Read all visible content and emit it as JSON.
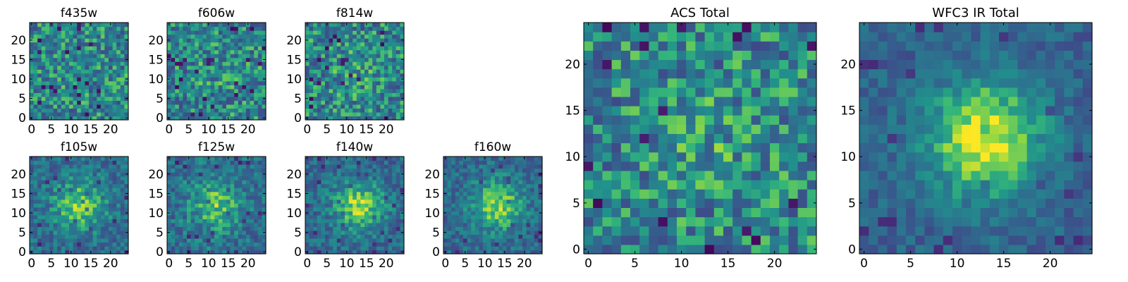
{
  "figure": {
    "description_hidden": null
  },
  "chart_data": [
    {
      "type": "heatmap",
      "title": "f435w",
      "grid_size": 25,
      "xlim": [
        -0.5,
        24.5
      ],
      "ylim": [
        -0.5,
        24.5
      ],
      "xticks": [
        0,
        5,
        10,
        15,
        20
      ],
      "yticks": [
        0,
        5,
        10,
        15,
        20
      ],
      "colormap": "viridis",
      "vmin": 0,
      "vmax": 1,
      "pattern": "noise",
      "seed": 11,
      "center_strength": 0.0
    },
    {
      "type": "heatmap",
      "title": "f606w",
      "grid_size": 25,
      "xlim": [
        -0.5,
        24.5
      ],
      "ylim": [
        -0.5,
        24.5
      ],
      "xticks": [
        0,
        5,
        10,
        15,
        20
      ],
      "yticks": [
        0,
        5,
        10,
        15,
        20
      ],
      "colormap": "viridis",
      "vmin": 0,
      "vmax": 1,
      "pattern": "noise",
      "seed": 23,
      "center_strength": 0.05
    },
    {
      "type": "heatmap",
      "title": "f814w",
      "grid_size": 25,
      "xlim": [
        -0.5,
        24.5
      ],
      "ylim": [
        -0.5,
        24.5
      ],
      "xticks": [
        0,
        5,
        10,
        15,
        20
      ],
      "yticks": [
        0,
        5,
        10,
        15,
        20
      ],
      "colormap": "viridis",
      "vmin": 0,
      "vmax": 1,
      "pattern": "noise",
      "seed": 37,
      "center_strength": 0.08
    },
    {
      "type": "heatmap",
      "title": "f105w",
      "grid_size": 25,
      "xlim": [
        -0.5,
        24.5
      ],
      "ylim": [
        -0.5,
        24.5
      ],
      "xticks": [
        0,
        5,
        10,
        15,
        20
      ],
      "yticks": [
        0,
        5,
        10,
        15,
        20
      ],
      "colormap": "viridis",
      "vmin": 0,
      "vmax": 1,
      "pattern": "source",
      "seed": 41,
      "center_strength": 0.35,
      "center": [
        12,
        12
      ]
    },
    {
      "type": "heatmap",
      "title": "f125w",
      "grid_size": 25,
      "xlim": [
        -0.5,
        24.5
      ],
      "ylim": [
        -0.5,
        24.5
      ],
      "xticks": [
        0,
        5,
        10,
        15,
        20
      ],
      "yticks": [
        0,
        5,
        10,
        15,
        20
      ],
      "colormap": "viridis",
      "vmin": 0,
      "vmax": 1,
      "pattern": "source",
      "seed": 53,
      "center_strength": 0.3,
      "center": [
        12,
        12
      ]
    },
    {
      "type": "heatmap",
      "title": "f140w",
      "grid_size": 25,
      "xlim": [
        -0.5,
        24.5
      ],
      "ylim": [
        -0.5,
        24.5
      ],
      "xticks": [
        0,
        5,
        10,
        15,
        20
      ],
      "yticks": [
        0,
        5,
        10,
        15,
        20
      ],
      "colormap": "viridis",
      "vmin": 0,
      "vmax": 1,
      "pattern": "source",
      "seed": 67,
      "center_strength": 0.4,
      "center": [
        13,
        12
      ]
    },
    {
      "type": "heatmap",
      "title": "f160w",
      "grid_size": 25,
      "xlim": [
        -0.5,
        24.5
      ],
      "ylim": [
        -0.5,
        24.5
      ],
      "xticks": [
        0,
        5,
        10,
        15,
        20
      ],
      "yticks": [
        0,
        5,
        10,
        15,
        20
      ],
      "colormap": "viridis",
      "vmin": 0,
      "vmax": 1,
      "pattern": "source",
      "seed": 79,
      "center_strength": 0.4,
      "center": [
        13,
        12
      ]
    },
    {
      "type": "heatmap",
      "title": "ACS Total",
      "grid_size": 25,
      "xlim": [
        -0.5,
        24.5
      ],
      "ylim": [
        -0.5,
        24.5
      ],
      "xticks": [
        0,
        5,
        10,
        15,
        20
      ],
      "yticks": [
        0,
        5,
        10,
        15,
        20
      ],
      "colormap": "viridis",
      "vmin": 0,
      "vmax": 1,
      "pattern": "noise",
      "seed": 97,
      "center_strength": 0.1,
      "center": [
        13,
        12
      ]
    },
    {
      "type": "heatmap",
      "title": "WFC3 IR Total",
      "grid_size": 25,
      "xlim": [
        -0.5,
        24.5
      ],
      "ylim": [
        -0.5,
        24.5
      ],
      "xticks": [
        0,
        5,
        10,
        15,
        20
      ],
      "yticks": [
        0,
        5,
        10,
        15,
        20
      ],
      "colormap": "viridis",
      "vmin": 0,
      "vmax": 1,
      "pattern": "source",
      "seed": 113,
      "center_strength": 0.55,
      "center": [
        13,
        12
      ]
    }
  ]
}
